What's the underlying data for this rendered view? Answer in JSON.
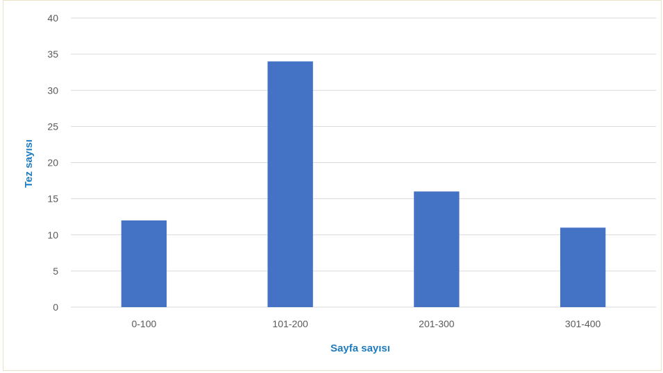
{
  "chart_data": {
    "type": "bar",
    "title": "",
    "xlabel": "Sayfa sayısı",
    "ylabel": "Tez sayısı",
    "categories": [
      "0-100",
      "101-200",
      "201-300",
      "301-400"
    ],
    "values": [
      12,
      34,
      16,
      11
    ],
    "ylim": [
      0,
      40
    ],
    "yticks": [
      0,
      5,
      10,
      15,
      20,
      25,
      30,
      35,
      40
    ],
    "grid": true,
    "legend": "none",
    "colors": {
      "bar": "#4472c4",
      "axis_title": "#1f7bbf",
      "grid": "#d9d9d9",
      "tick_text": "#595959"
    }
  }
}
